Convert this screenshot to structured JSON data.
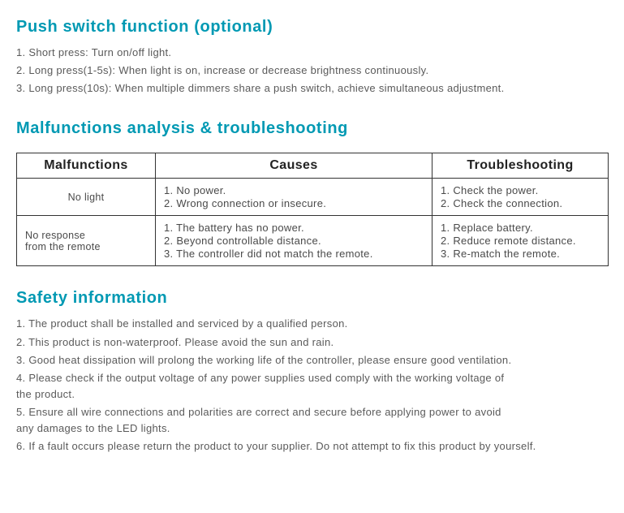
{
  "colors": {
    "heading": "#0099b3",
    "text": "#5a5a5a",
    "border": "#333333",
    "background": "#ffffff"
  },
  "sections": {
    "push": {
      "title": "Push switch function (optional)",
      "items": [
        "1. Short press: Turn on/off light.",
        "2. Long press(1-5s): When light is on, increase or decrease brightness continuously.",
        "3. Long press(10s): When multiple dimmers share a push switch, achieve simultaneous adjustment."
      ]
    },
    "malfunc": {
      "title": "Malfunctions analysis & troubleshooting",
      "headers": [
        "Malfunctions",
        "Causes",
        "Troubleshooting"
      ],
      "rows": [
        {
          "malfunction": "No light",
          "malfunc_align": "center",
          "causes": [
            "1. No power.",
            "2. Wrong connection or insecure."
          ],
          "trouble": [
            "1. Check the power.",
            "2. Check the connection."
          ]
        },
        {
          "malfunction": "No response\nfrom the remote",
          "malfunc_align": "left",
          "causes": [
            "1. The battery has no power.",
            "2. Beyond controllable distance.",
            "3. The controller did not match the remote."
          ],
          "trouble": [
            "1. Replace battery.",
            "2. Reduce remote distance.",
            "3. Re-match the remote."
          ]
        }
      ]
    },
    "safety": {
      "title": "Safety information",
      "items": [
        "1. The product shall be installed and serviced by a qualified person.",
        "2. This product is non-waterproof. Please avoid the sun and rain.",
        "3. Good heat dissipation will prolong the working life of the controller, please ensure good ventilation.",
        "4. Please check if the output voltage of any power supplies used comply with the working voltage of\n    the product.",
        "5. Ensure all wire connections and polarities are correct and secure before applying power to avoid\n    any damages to the LED lights.",
        "6. If a fault occurs please return the product to your supplier. Do not attempt to fix this product by yourself."
      ]
    }
  }
}
